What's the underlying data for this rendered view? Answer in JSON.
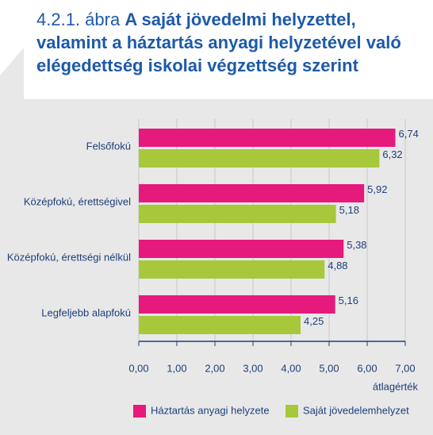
{
  "chart_data": {
    "type": "bar",
    "orientation": "horizontal",
    "title_number": "4.2.1. ábra",
    "title": "A saját jövedelmi helyzettel, valamint a háztartás anyagi helyzetével való elégedettség iskolai végzettség szerint",
    "categories": [
      "Felsőfokú",
      "Középfokú, érettségivel",
      "Középfokú, érettségi nélkül",
      "Legfeljebb alapfokú"
    ],
    "series": [
      {
        "name": "Háztartás anyagi helyzete",
        "color": "#e6197d",
        "values": [
          6.74,
          5.92,
          5.38,
          5.16
        ],
        "value_labels": [
          "6,74",
          "5,92",
          "5,38",
          "5,16"
        ]
      },
      {
        "name": "Saját jövedelemhelyzet",
        "color": "#a6c83a",
        "values": [
          6.32,
          5.18,
          4.88,
          4.25
        ],
        "value_labels": [
          "6,32",
          "5,18",
          "4,88",
          "4,25"
        ]
      }
    ],
    "xlabel": "átlagérték",
    "xlim": [
      0,
      7
    ],
    "xticks": [
      {
        "value": 0,
        "label": "0,00"
      },
      {
        "value": 1,
        "label": "1,00"
      },
      {
        "value": 2,
        "label": "2,00"
      },
      {
        "value": 3,
        "label": "3,00"
      },
      {
        "value": 4,
        "label": "4,00"
      },
      {
        "value": 5,
        "label": "5,00"
      },
      {
        "value": 6,
        "label": "6,00"
      },
      {
        "value": 7,
        "label": "7,00"
      }
    ],
    "grid": true,
    "legend": "bottom"
  }
}
